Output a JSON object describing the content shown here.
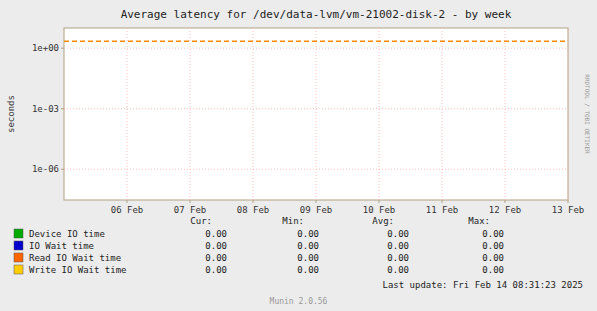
{
  "chart_data": {
    "type": "line",
    "title": "Average latency for /dev/data-lvm/vm-21002-disk-2 - by week",
    "y_label": "seconds",
    "log": "y",
    "grid": true,
    "xlim": [
      0,
      8
    ],
    "xticks": [
      {
        "value": 1,
        "label": "06 Feb"
      },
      {
        "value": 2,
        "label": "07 Feb"
      },
      {
        "value": 3,
        "label": "08 Feb"
      },
      {
        "value": 4,
        "label": "09 Feb"
      },
      {
        "value": 5,
        "label": "10 Feb"
      },
      {
        "value": 6,
        "label": "11 Feb"
      },
      {
        "value": 7,
        "label": "12 Feb"
      },
      {
        "value": 8,
        "label": "13 Feb"
      }
    ],
    "ylim": [
      3e-08,
      10.0
    ],
    "yticks": [
      {
        "value": 1e-06,
        "label": "1e-06"
      },
      {
        "value": 0.001,
        "label": "1e-03"
      },
      {
        "value": 1.0,
        "label": "1e+00"
      }
    ],
    "hlines": [
      {
        "value": 2.2,
        "color": "#ff8800",
        "line_style": "dashed"
      }
    ],
    "stats_headers": [
      "Cur:",
      "Min:",
      "Avg:",
      "Max:"
    ],
    "series": [
      {
        "name": "Device IO time",
        "color": "#00aa00",
        "stats": [
          {
            "value": 0,
            "label": "0.00"
          },
          {
            "value": 0,
            "label": "0.00"
          },
          {
            "value": 0,
            "label": "0.00"
          },
          {
            "value": 0,
            "label": "0.00"
          }
        ]
      },
      {
        "name": "IO Wait time",
        "color": "#0000cc",
        "stats": [
          {
            "value": 0,
            "label": "0.00"
          },
          {
            "value": 0,
            "label": "0.00"
          },
          {
            "value": 0,
            "label": "0.00"
          },
          {
            "value": 0,
            "label": "0.00"
          }
        ]
      },
      {
        "name": "Read IO Wait time",
        "color": "#ff6600",
        "stats": [
          {
            "value": 0,
            "label": "0.00"
          },
          {
            "value": 0,
            "label": "0.00"
          },
          {
            "value": 0,
            "label": "0.00"
          },
          {
            "value": 0,
            "label": "0.00"
          }
        ]
      },
      {
        "name": "Write IO Wait time",
        "color": "#ffcc00",
        "stats": [
          {
            "value": 0,
            "label": "0.00"
          },
          {
            "value": 0,
            "label": "0.00"
          },
          {
            "value": 0,
            "label": "0.00"
          },
          {
            "value": 0,
            "label": "0.00"
          }
        ]
      }
    ],
    "annotations": [
      "Last update: Fri Feb 14 08:31:23 2025",
      "Munin 2.0.56",
      "RRDTOOL / TOBI OETIKER"
    ]
  }
}
